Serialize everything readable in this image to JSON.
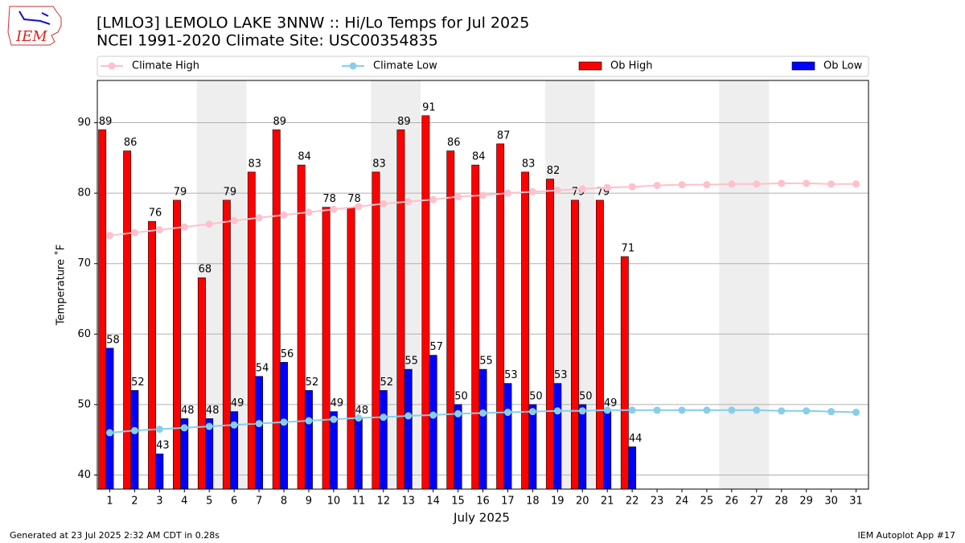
{
  "logo_text": "IEM",
  "footer": {
    "left": "Generated at 23 Jul 2025 2:32 AM CDT in 0.28s",
    "right": "IEM Autoplot App #17"
  },
  "chart_data": {
    "type": "bar",
    "title": "[LMLO3] LEMOLO LAKE  3NNW :: Hi/Lo Temps for Jul 2025",
    "subtitle": "NCEI 1991-2020 Climate Site: USC00354835",
    "x_label": "July 2025",
    "y_label": "Temperature ˚F",
    "x": [
      1,
      2,
      3,
      4,
      5,
      6,
      7,
      8,
      9,
      10,
      11,
      12,
      13,
      14,
      15,
      16,
      17,
      18,
      19,
      20,
      21,
      22,
      23,
      24,
      25,
      26,
      27,
      28,
      29,
      30,
      31
    ],
    "xlim": [
      0.5,
      31.5
    ],
    "xticks": [
      1,
      2,
      3,
      4,
      5,
      6,
      7,
      8,
      9,
      10,
      11,
      12,
      13,
      14,
      15,
      16,
      17,
      18,
      19,
      20,
      21,
      22,
      23,
      24,
      25,
      26,
      27,
      28,
      29,
      30,
      31
    ],
    "ylim": [
      38,
      96
    ],
    "yticks": [
      40,
      50,
      60,
      70,
      80,
      90
    ],
    "grid": true,
    "legend": "top",
    "shaded_ranges": [
      [
        4.5,
        6.5
      ],
      [
        11.5,
        13.5
      ],
      [
        18.5,
        20.5
      ],
      [
        25.5,
        27.5
      ]
    ],
    "series": [
      {
        "name": "Climate High",
        "type": "line",
        "color": "#ffc0cb",
        "values": [
          74.0,
          74.4,
          74.8,
          75.2,
          75.6,
          76.1,
          76.5,
          76.9,
          77.3,
          77.7,
          78.1,
          78.5,
          78.8,
          79.1,
          79.5,
          79.7,
          80.0,
          80.2,
          80.4,
          80.6,
          80.8,
          80.9,
          81.1,
          81.2,
          81.2,
          81.3,
          81.3,
          81.4,
          81.4,
          81.3,
          81.3
        ]
      },
      {
        "name": "Climate Low",
        "type": "line",
        "color": "#87ceeb",
        "values": [
          46.0,
          46.3,
          46.5,
          46.7,
          46.9,
          47.1,
          47.3,
          47.5,
          47.7,
          47.9,
          48.1,
          48.2,
          48.4,
          48.5,
          48.7,
          48.8,
          48.9,
          49.0,
          49.1,
          49.1,
          49.2,
          49.2,
          49.2,
          49.2,
          49.2,
          49.2,
          49.2,
          49.1,
          49.1,
          49.0,
          48.9
        ]
      },
      {
        "name": "Ob High",
        "type": "bar",
        "color": "#ff0000",
        "values": [
          89,
          86,
          76,
          79,
          68,
          79,
          83,
          89,
          84,
          78,
          78,
          83,
          89,
          91,
          86,
          84,
          87,
          83,
          82,
          79,
          79,
          71,
          null,
          null,
          null,
          null,
          null,
          null,
          null,
          null,
          null
        ]
      },
      {
        "name": "Ob Low",
        "type": "bar",
        "color": "#0000ff",
        "values": [
          58,
          52,
          43,
          48,
          48,
          49,
          54,
          56,
          52,
          49,
          48,
          52,
          55,
          57,
          50,
          55,
          53,
          50,
          53,
          50,
          49,
          44,
          null,
          null,
          null,
          null,
          null,
          null,
          null,
          null,
          null
        ]
      }
    ]
  }
}
